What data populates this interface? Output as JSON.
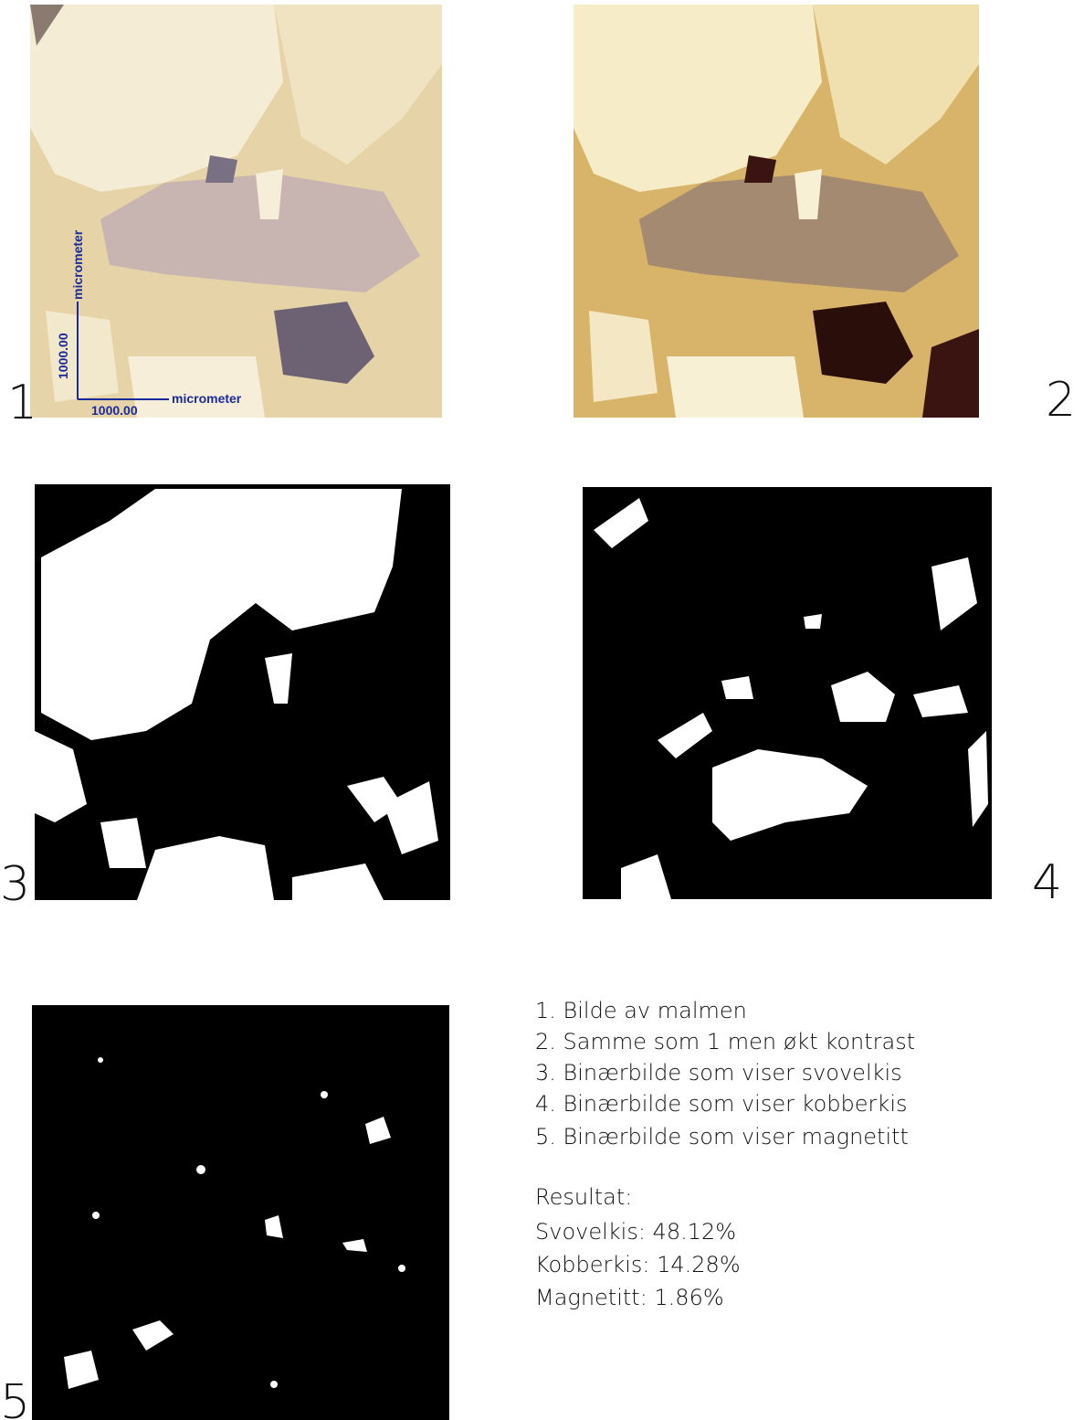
{
  "panels": [
    {
      "label": "1"
    },
    {
      "label": "2"
    },
    {
      "label": "3"
    },
    {
      "label": "4"
    },
    {
      "label": "5"
    }
  ],
  "scale_bar": {
    "x_value": "1000.00",
    "x_unit": "micrometer",
    "y_value": "1000.00",
    "y_unit": "micrometer"
  },
  "legend": {
    "items": [
      "1.  Bilde av malmen",
      "2. Samme som 1 men økt kontrast",
      "3. Binærbilde som viser svovelkis",
      "4.  Binærbilde som viser kobberkis",
      "5.  Binærbilde som  viser magnetitt"
    ]
  },
  "results": {
    "title": "Resultat:",
    "items": [
      "Svovelkis: 48.12%",
      "Kobberkis: 14.28%",
      "Magnetitt: 1.86%"
    ]
  }
}
